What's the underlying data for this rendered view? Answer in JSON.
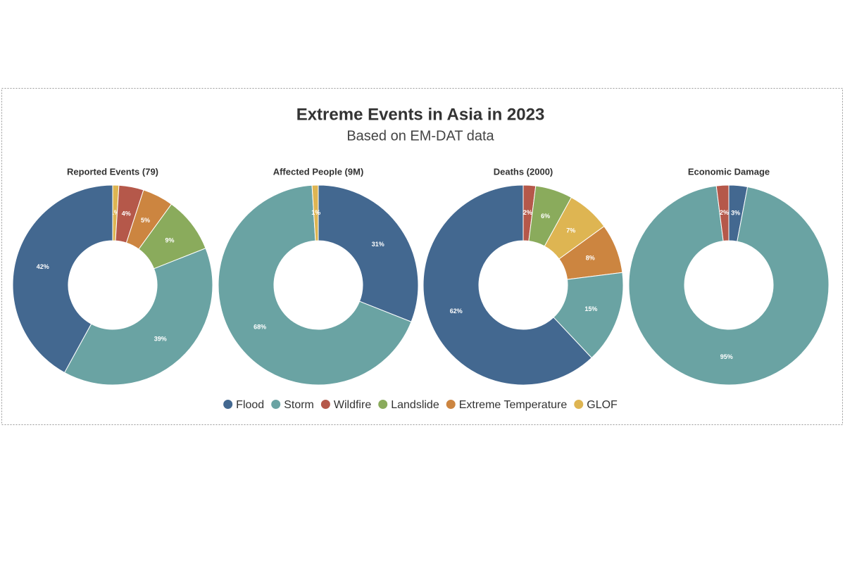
{
  "title": "Extreme Events in Asia in 2023",
  "subtitle": "Based on EM-DAT data",
  "legend": [
    {
      "name": "Flood",
      "color": "#436890"
    },
    {
      "name": "Storm",
      "color": "#6aa3a3"
    },
    {
      "name": "Wildfire",
      "color": "#b5584a"
    },
    {
      "name": "Landslide",
      "color": "#8aab5c"
    },
    {
      "name": "Extreme Temperature",
      "color": "#cc8540"
    },
    {
      "name": "GLOF",
      "color": "#deb552"
    }
  ],
  "chart_data": [
    {
      "type": "pie",
      "donut": true,
      "title": "Reported Events (79)",
      "categories": [
        "GLOF",
        "Wildfire",
        "Extreme Temperature",
        "Landslide",
        "Storm",
        "Flood"
      ],
      "values": [
        1,
        4,
        5,
        9,
        39,
        42
      ],
      "value_labels": [
        "1%",
        "4%",
        "5%",
        "9%",
        "39%",
        "42%"
      ]
    },
    {
      "type": "pie",
      "donut": true,
      "title": "Affected People (9M)",
      "categories": [
        "Flood",
        "Storm",
        "GLOF"
      ],
      "values": [
        31,
        68,
        1
      ],
      "value_labels": [
        "31%",
        "68%",
        "1%"
      ]
    },
    {
      "type": "pie",
      "donut": true,
      "title": "Deaths (2000)",
      "categories": [
        "Wildfire",
        "Landslide",
        "GLOF",
        "Extreme Temperature",
        "Storm",
        "Flood"
      ],
      "values": [
        2,
        6,
        7,
        8,
        15,
        62
      ],
      "value_labels": [
        "2%",
        "6%",
        "7%",
        "8%",
        "15%",
        "62%"
      ]
    },
    {
      "type": "pie",
      "donut": true,
      "title": "Economic Damage",
      "categories": [
        "Flood",
        "Storm",
        "Wildfire"
      ],
      "values": [
        3,
        95,
        2
      ],
      "value_labels": [
        "3%",
        "95%",
        "2%"
      ]
    }
  ]
}
